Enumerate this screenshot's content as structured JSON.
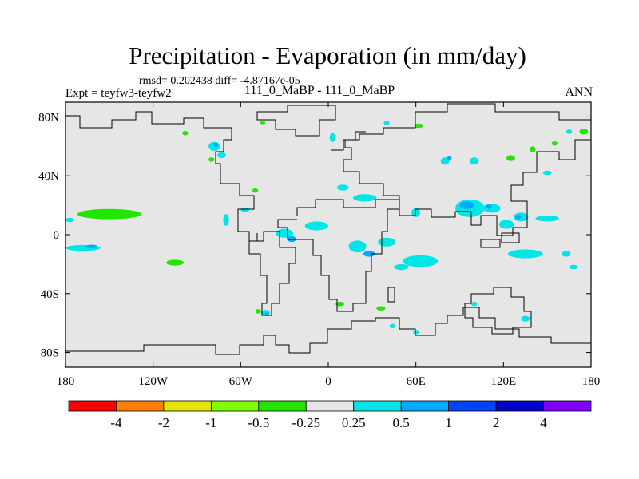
{
  "chart_data": {
    "type": "heatmap",
    "title": "Precipitation - Evaporation (in mm/day)",
    "stats": "rmsd= 0.202438 diff= -4.87167e-05",
    "left_label": "Expt = teyfw3-teyfw2",
    "center_label": "111_0_MaBP - 111_0_MaBP",
    "right_label": "ANN",
    "xlim": [
      -180,
      180
    ],
    "ylim": [
      -90,
      90
    ],
    "x_ticks": [
      {
        "value": -180,
        "label": "180"
      },
      {
        "value": -120,
        "label": "120W"
      },
      {
        "value": -60,
        "label": "60W"
      },
      {
        "value": 0,
        "label": "0"
      },
      {
        "value": 60,
        "label": "60E"
      },
      {
        "value": 120,
        "label": "120E"
      },
      {
        "value": 180,
        "label": "180"
      }
    ],
    "y_ticks": [
      {
        "value": 80,
        "label": "80N"
      },
      {
        "value": 40,
        "label": "40N"
      },
      {
        "value": 0,
        "label": "0"
      },
      {
        "value": -40,
        "label": "40S"
      },
      {
        "value": -80,
        "label": "80S"
      }
    ],
    "colorbar": {
      "colors": [
        "#ff0000",
        "#ff7f00",
        "#e6e600",
        "#7fff00",
        "#22e600",
        "#e6e6e6",
        "#00e6e6",
        "#00aaff",
        "#0044ff",
        "#0000cc",
        "#7f00ff"
      ],
      "labels": [
        "-4",
        "-2",
        "-1",
        "-0.5",
        "-0.25",
        "0.25",
        "0.5",
        "1",
        "2",
        "4"
      ]
    },
    "field_background": "#e6e6e6",
    "anomalies": [
      {
        "lon": -150,
        "lat": 14,
        "rlon": 22,
        "rlat": 3.5,
        "level": "-0.25"
      },
      {
        "lon": -177,
        "lat": 10,
        "rlon": 3,
        "rlat": 1.5,
        "level": "0.25"
      },
      {
        "lon": -168,
        "lat": -9,
        "rlon": 12,
        "rlat": 2,
        "level": "0.25"
      },
      {
        "lon": -162,
        "lat": -8,
        "rlon": 4,
        "rlat": 1.2,
        "level": "0.5"
      },
      {
        "lon": -105,
        "lat": -19,
        "rlon": 6,
        "rlat": 2,
        "level": "-0.25"
      },
      {
        "lon": -78,
        "lat": 60,
        "rlon": 4,
        "rlat": 3,
        "level": "0.25"
      },
      {
        "lon": -77,
        "lat": 61,
        "rlon": 1.5,
        "rlat": 1.5,
        "level": "0.5"
      },
      {
        "lon": -73,
        "lat": 54,
        "rlon": 3,
        "rlat": 2,
        "level": "0.25"
      },
      {
        "lon": -80,
        "lat": 51,
        "rlon": 2,
        "rlat": 1.5,
        "level": "-0.25"
      },
      {
        "lon": -98,
        "lat": 69,
        "rlon": 2,
        "rlat": 1.5,
        "level": "-0.25"
      },
      {
        "lon": -70,
        "lat": 10,
        "rlon": 2,
        "rlat": 4,
        "level": "0.25"
      },
      {
        "lon": -57,
        "lat": 17,
        "rlon": 3,
        "rlat": 1.5,
        "level": "0.25"
      },
      {
        "lon": -50,
        "lat": 30,
        "rlon": 2,
        "rlat": 1.5,
        "level": "-0.25"
      },
      {
        "lon": -30,
        "lat": 1,
        "rlon": 6,
        "rlat": 3,
        "level": "0.25"
      },
      {
        "lon": -25,
        "lat": -3,
        "rlon": 3,
        "rlat": 2,
        "level": "0.5"
      },
      {
        "lon": -8,
        "lat": 6,
        "rlon": 8,
        "rlat": 3,
        "level": "0.25"
      },
      {
        "lon": -43,
        "lat": -53,
        "rlon": 3,
        "rlat": 2,
        "level": "0.25"
      },
      {
        "lon": -42,
        "lat": -54,
        "rlon": 1.2,
        "rlat": 1.2,
        "level": "0.5"
      },
      {
        "lon": -48,
        "lat": -52,
        "rlon": 2,
        "rlat": 1.5,
        "level": "-0.25"
      },
      {
        "lon": 8,
        "lat": -47,
        "rlon": 3,
        "rlat": 1.5,
        "level": "-0.25"
      },
      {
        "lon": 3,
        "lat": 66,
        "rlon": 2,
        "rlat": 3,
        "level": "0.25"
      },
      {
        "lon": 10,
        "lat": 32,
        "rlon": 4,
        "rlat": 2,
        "level": "0.25"
      },
      {
        "lon": 25,
        "lat": 25,
        "rlon": 8,
        "rlat": 2.5,
        "level": "0.25"
      },
      {
        "lon": 20,
        "lat": -8,
        "rlon": 6,
        "rlat": 4,
        "level": "0.25"
      },
      {
        "lon": 28,
        "lat": -13,
        "rlon": 4,
        "rlat": 2,
        "level": "0.5"
      },
      {
        "lon": 40,
        "lat": -5,
        "rlon": 6,
        "rlat": 3,
        "level": "0.25"
      },
      {
        "lon": 63,
        "lat": -18,
        "rlon": 12,
        "rlat": 4,
        "level": "0.25"
      },
      {
        "lon": 50,
        "lat": -22,
        "rlon": 5,
        "rlat": 2,
        "level": "0.25"
      },
      {
        "lon": 36,
        "lat": -50,
        "rlon": 3,
        "rlat": 1.5,
        "level": "-0.25"
      },
      {
        "lon": 44,
        "lat": -62,
        "rlon": 2,
        "rlat": 1.5,
        "level": "0.25"
      },
      {
        "lon": 60,
        "lat": -66,
        "rlon": 2,
        "rlat": 1.5,
        "level": "0.25"
      },
      {
        "lon": 100,
        "lat": -47,
        "rlon": 2,
        "rlat": 1.5,
        "level": "0.25"
      },
      {
        "lon": 135,
        "lat": -57,
        "rlon": 3,
        "rlat": 2,
        "level": "0.25"
      },
      {
        "lon": 97,
        "lat": 18,
        "rlon": 10,
        "rlat": 6,
        "level": "0.25"
      },
      {
        "lon": 95,
        "lat": 20,
        "rlon": 5,
        "rlat": 2.5,
        "level": "0.5"
      },
      {
        "lon": 112,
        "lat": 18,
        "rlon": 6,
        "rlat": 3,
        "level": "0.25"
      },
      {
        "lon": 110,
        "lat": 19,
        "rlon": 2,
        "rlat": 1.5,
        "level": "0.5"
      },
      {
        "lon": 132,
        "lat": 12,
        "rlon": 5,
        "rlat": 3,
        "level": "0.25"
      },
      {
        "lon": 130,
        "lat": 12,
        "rlon": 2,
        "rlat": 1.5,
        "level": "0.5"
      },
      {
        "lon": 122,
        "lat": 7,
        "rlon": 5,
        "rlat": 3,
        "level": "0.25"
      },
      {
        "lon": 150,
        "lat": 11,
        "rlon": 8,
        "rlat": 2,
        "level": "0.25"
      },
      {
        "lon": 135,
        "lat": -13,
        "rlon": 12,
        "rlat": 3,
        "level": "0.25"
      },
      {
        "lon": 163,
        "lat": -13,
        "rlon": 3,
        "rlat": 2,
        "level": "0.25"
      },
      {
        "lon": 168,
        "lat": -22,
        "rlon": 3,
        "rlat": 1.5,
        "level": "0.25"
      },
      {
        "lon": 80,
        "lat": 50,
        "rlon": 3,
        "rlat": 2.5,
        "level": "0.25"
      },
      {
        "lon": 83,
        "lat": 52,
        "rlon": 1.5,
        "rlat": 1.5,
        "level": "0.5"
      },
      {
        "lon": 100,
        "lat": 50,
        "rlon": 3,
        "rlat": 2.5,
        "level": "0.25"
      },
      {
        "lon": 125,
        "lat": 52,
        "rlon": 3,
        "rlat": 2,
        "level": "-0.25"
      },
      {
        "lon": 140,
        "lat": 58,
        "rlon": 2,
        "rlat": 2,
        "level": "-0.25"
      },
      {
        "lon": 155,
        "lat": 62,
        "rlon": 2,
        "rlat": 1.5,
        "level": "-0.25"
      },
      {
        "lon": 150,
        "lat": 42,
        "rlon": 3,
        "rlat": 1.5,
        "level": "0.25"
      },
      {
        "lon": 175,
        "lat": 70,
        "rlon": 3,
        "rlat": 2,
        "level": "-0.25"
      },
      {
        "lon": 165,
        "lat": 70,
        "rlon": 2,
        "rlat": 1.5,
        "level": "0.25"
      },
      {
        "lon": 62,
        "lat": 74,
        "rlon": 3,
        "rlat": 1.5,
        "level": "-0.25"
      },
      {
        "lon": 40,
        "lat": 76,
        "rlon": 2,
        "rlat": 1.5,
        "level": "0.25"
      },
      {
        "lon": -45,
        "lat": 76,
        "rlon": 2,
        "rlat": 1,
        "level": "-0.25"
      },
      {
        "lon": 60,
        "lat": 15,
        "rlon": 3,
        "rlat": 3,
        "level": "0.25"
      }
    ]
  }
}
